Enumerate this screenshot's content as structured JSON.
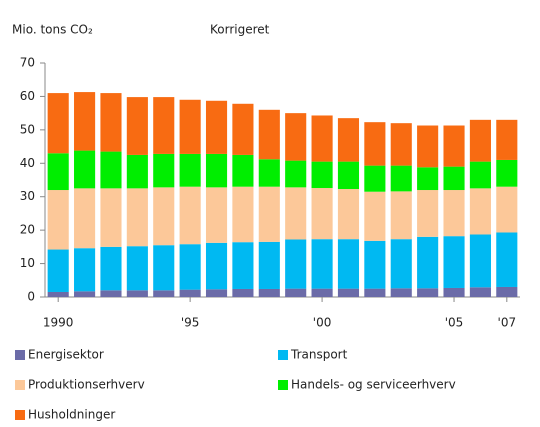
{
  "chart_data": {
    "type": "stacked_bar",
    "title": "Mio. tons CO₂",
    "subtitle": "Korrigeret",
    "categories": [
      "1990",
      null,
      null,
      null,
      null,
      "'95",
      null,
      null,
      null,
      null,
      "'00",
      null,
      null,
      null,
      null,
      "'05",
      null,
      "'07"
    ],
    "series": [
      {
        "name": "Energisektor",
        "color": "#6b6ba8",
        "values": [
          1.5,
          1.7,
          2,
          2,
          2,
          2.2,
          2.3,
          2.4,
          2.4,
          2.5,
          2.5,
          2.5,
          2.5,
          2.6,
          2.6,
          2.7,
          2.9,
          3
        ]
      },
      {
        "name": "Transport",
        "color": "#00b9f2",
        "values": [
          12.7,
          12.9,
          13,
          13.2,
          13.5,
          13.6,
          13.9,
          14,
          14.1,
          14.7,
          14.8,
          14.8,
          14.3,
          14.7,
          15.4,
          15.5,
          15.8,
          16.3
        ]
      },
      {
        "name": "Produktionserhverv",
        "color": "#fcc899",
        "values": [
          17.8,
          17.9,
          17.5,
          17.3,
          17.3,
          17.2,
          16.6,
          16.6,
          16.5,
          15.6,
          15.3,
          15,
          14.7,
          14.3,
          14,
          13.8,
          13.8,
          13.7
        ]
      },
      {
        "name": "Handels- og serviceerhverv",
        "color": "#00ee00",
        "values": [
          11,
          11.3,
          11,
          10,
          10,
          9.8,
          10,
          9.5,
          8.2,
          8,
          7.9,
          8.2,
          7.8,
          7.7,
          6.8,
          7,
          8,
          8
        ]
      },
      {
        "name": "Husholdninger",
        "color": "#f86b12",
        "values": [
          18,
          17.5,
          17.5,
          17.3,
          17,
          16.2,
          15.9,
          15.3,
          14.8,
          14.2,
          13.8,
          13,
          13,
          12.7,
          12.5,
          12.3,
          12.5,
          12
        ]
      }
    ],
    "ylim": [
      0,
      70
    ],
    "yticks": [
      0,
      10,
      20,
      30,
      40,
      50,
      60,
      70
    ],
    "grid": false
  }
}
